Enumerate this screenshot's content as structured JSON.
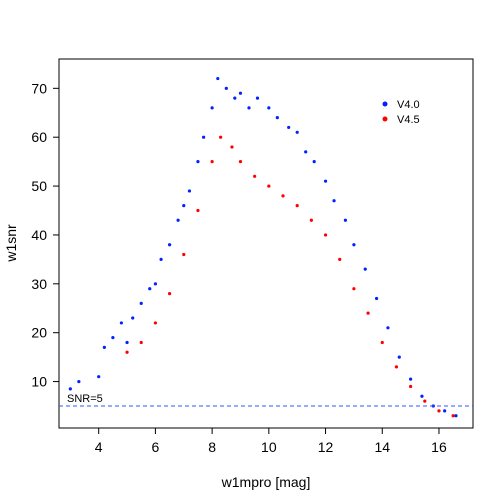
{
  "chart_data": {
    "type": "scatter",
    "title": "",
    "xlabel": "w1mpro [mag]",
    "ylabel": "w1snr",
    "xlim": [
      2.6,
      17.2
    ],
    "ylim": [
      0.5,
      76
    ],
    "x_ticks": [
      4,
      6,
      8,
      10,
      12,
      14,
      16
    ],
    "y_ticks": [
      10,
      20,
      30,
      40,
      50,
      60,
      70
    ],
    "grid": false,
    "legend_position": "top-right",
    "series": [
      {
        "name": "V4.0",
        "color": "#0022ff",
        "points_x": [
          3.0,
          3.3,
          4.0,
          4.2,
          4.5,
          4.8,
          5.0,
          5.2,
          5.5,
          5.8,
          6.0,
          6.2,
          6.5,
          6.8,
          7.0,
          7.2,
          7.5,
          7.7,
          8.0,
          8.2,
          8.5,
          8.8,
          9.0,
          9.3,
          9.6,
          10.0,
          10.3,
          10.7,
          11.0,
          11.3,
          11.6,
          12.0,
          12.3,
          12.7,
          13.0,
          13.4,
          13.8,
          14.2,
          14.6,
          15.0,
          15.4,
          15.8,
          16.2,
          16.6
        ],
        "points_y": [
          8.5,
          10.0,
          11.0,
          17.0,
          19.0,
          22.0,
          18.0,
          23.0,
          26.0,
          29.0,
          30.0,
          35.0,
          38.0,
          43.0,
          46.0,
          49.0,
          55.0,
          60.0,
          66.0,
          72.0,
          70.0,
          68.0,
          69.0,
          66.0,
          68.0,
          66.0,
          64.0,
          62.0,
          61.0,
          57.0,
          55.0,
          51.0,
          47.0,
          43.0,
          38.0,
          33.0,
          27.0,
          21.0,
          15.0,
          10.5,
          7.0,
          5.0,
          4.0,
          3.0
        ]
      },
      {
        "name": "V4.5",
        "color": "#ff0000",
        "points_x": [
          5.0,
          5.5,
          6.0,
          6.5,
          7.0,
          7.5,
          8.0,
          8.3,
          8.7,
          9.0,
          9.5,
          10.0,
          10.5,
          11.0,
          11.5,
          12.0,
          12.5,
          13.0,
          13.5,
          14.0,
          14.5,
          15.0,
          15.5,
          16.0,
          16.5
        ],
        "points_y": [
          16.0,
          18.0,
          22.0,
          28.0,
          36.0,
          45.0,
          55.0,
          60.0,
          58.0,
          55.0,
          52.0,
          50.0,
          48.0,
          46.0,
          43.0,
          40.0,
          35.0,
          29.0,
          24.0,
          18.0,
          13.0,
          9.0,
          6.0,
          4.0,
          3.0
        ]
      }
    ],
    "reference_line": {
      "y": 5,
      "label": "SNR=5",
      "color": "#3355ff",
      "style": "dashed"
    }
  }
}
